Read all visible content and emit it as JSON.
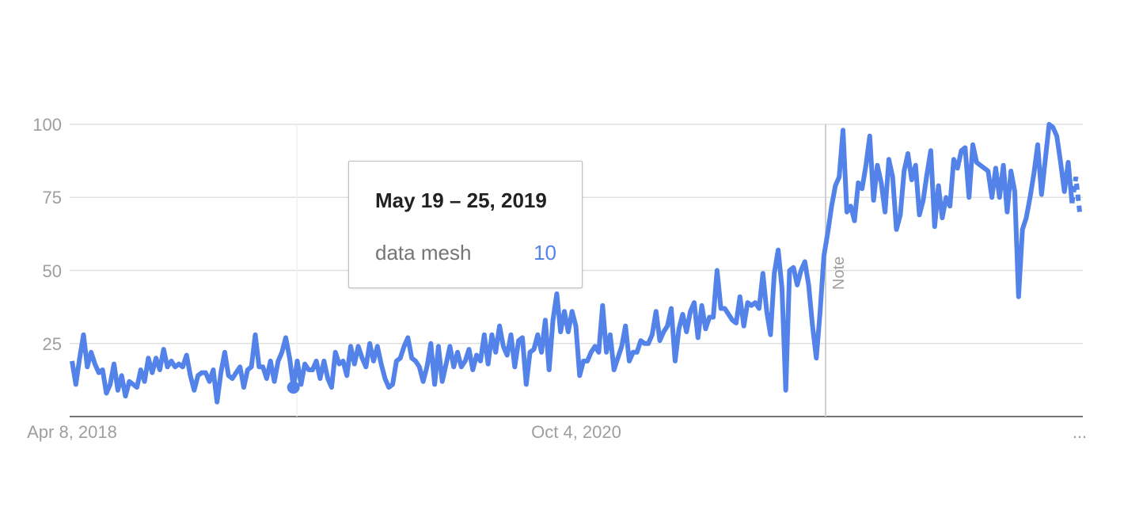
{
  "chart_data": {
    "type": "line",
    "series": [
      {
        "name": "data mesh",
        "color": "#5383e8",
        "values": [
          19,
          11,
          20,
          28,
          17,
          22,
          18,
          15,
          16,
          8,
          11,
          18,
          9,
          14,
          7,
          12,
          11,
          10,
          16,
          12,
          20,
          15,
          20,
          16,
          23,
          17,
          19,
          17,
          18,
          17,
          21,
          14,
          9,
          14,
          15,
          15,
          12,
          16,
          5,
          15,
          22,
          14,
          13,
          15,
          17,
          10,
          16,
          17,
          28,
          17,
          17,
          13,
          19,
          12,
          19,
          22,
          27,
          20,
          10,
          19,
          11,
          18,
          16,
          16,
          19,
          13,
          19,
          13,
          10,
          22,
          18,
          19,
          14,
          24,
          18,
          24,
          20,
          17,
          25,
          19,
          24,
          18,
          13,
          10,
          11,
          19,
          20,
          24,
          27,
          20,
          19,
          17,
          12,
          17,
          25,
          11,
          24,
          12,
          18,
          24,
          17,
          22,
          17,
          19,
          23,
          16,
          21,
          19,
          28,
          18,
          28,
          22,
          31,
          24,
          21,
          28,
          17,
          26,
          27,
          11,
          22,
          23,
          28,
          22,
          33,
          16,
          33,
          42,
          29,
          36,
          29,
          36,
          31,
          14,
          19,
          19,
          22,
          24,
          22,
          38,
          22,
          28,
          16,
          20,
          24,
          31,
          19,
          22,
          22,
          26,
          25,
          25,
          28,
          36,
          26,
          29,
          31,
          37,
          19,
          30,
          35,
          29,
          36,
          39,
          27,
          38,
          30,
          34,
          34,
          50,
          37,
          37,
          35,
          33,
          32,
          41,
          31,
          39,
          38,
          39,
          37,
          49,
          36,
          28,
          49,
          57,
          44,
          9,
          50,
          51,
          45,
          50,
          53,
          45,
          31,
          20,
          36,
          55,
          63,
          72,
          79,
          82,
          98,
          70,
          72,
          67,
          80,
          78,
          86,
          96,
          74,
          86,
          80,
          70,
          88,
          82,
          64,
          69,
          84,
          90,
          81,
          86,
          69,
          74,
          83,
          91,
          65,
          79,
          68,
          75,
          72,
          88,
          85,
          91,
          92,
          75,
          93,
          87,
          86,
          85,
          84,
          75,
          85,
          75,
          86,
          70,
          84,
          77,
          41,
          64,
          68,
          75,
          83,
          93,
          76,
          88,
          100,
          99,
          96,
          87,
          77,
          87,
          73,
          82,
          70
        ]
      }
    ],
    "x_start": "Apr 8, 2018",
    "x_interval": "weekly",
    "x_tick_labels": [
      "Apr 8, 2018",
      "Oct 4, 2020",
      "..."
    ],
    "y_tick_labels": [
      "100",
      "75",
      "50",
      "25"
    ],
    "ylim": [
      0,
      100
    ],
    "grid": true,
    "legend": "none",
    "annotations": [
      {
        "label": "Note"
      }
    ]
  },
  "tooltip": {
    "date": "May 19 – 25, 2019",
    "series": "data mesh",
    "value": "10"
  }
}
